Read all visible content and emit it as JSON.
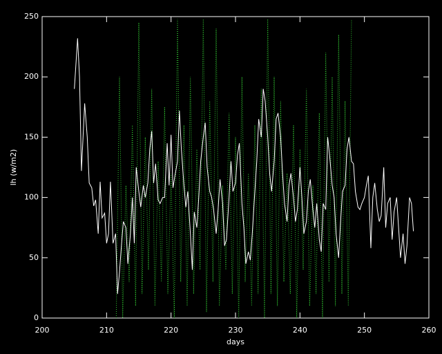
{
  "chart_data": {
    "type": "line",
    "xlabel": "days",
    "ylabel": "lh (w/m2)",
    "xlim": [
      200,
      260
    ],
    "xticks": [
      200,
      210,
      220,
      230,
      240,
      250,
      260
    ],
    "ylim": [
      0,
      250
    ],
    "yticks": [
      0,
      50,
      100,
      150,
      200,
      250
    ],
    "series": [
      {
        "color": "#ffffff",
        "dash": "solid",
        "x": [
          205.0,
          205.5,
          205.8,
          206.1,
          206.6,
          207.0,
          207.3,
          207.7,
          208.0,
          208.3,
          208.7,
          209.0,
          209.3,
          209.7,
          210.0,
          210.3,
          210.6,
          211.0,
          211.4,
          211.7,
          212.0,
          212.3,
          212.6,
          213.0,
          213.3,
          213.7,
          214.0,
          214.3,
          214.6,
          215.0,
          215.3,
          215.7,
          216.0,
          216.4,
          216.7,
          217.0,
          217.3,
          217.6,
          218.0,
          218.3,
          218.7,
          219.0,
          219.4,
          219.7,
          220.0,
          220.3,
          220.6,
          221.0,
          221.3,
          221.6,
          222.0,
          222.3,
          222.6,
          223.0,
          223.3,
          223.6,
          224.0,
          224.3,
          224.6,
          225.0,
          225.3,
          225.6,
          226.0,
          226.3,
          226.6,
          227.0,
          227.3,
          227.6,
          228.0,
          228.3,
          228.6,
          229.0,
          229.3,
          229.6,
          230.0,
          230.3,
          230.6,
          231.0,
          231.3,
          231.6,
          232.0,
          232.3,
          232.6,
          233.0,
          233.3,
          233.6,
          234.0,
          234.3,
          234.6,
          235.0,
          235.3,
          235.6,
          236.0,
          236.3,
          236.6,
          237.0,
          237.3,
          237.6,
          238.0,
          238.3,
          238.6,
          239.0,
          239.3,
          239.6,
          240.0,
          240.3,
          240.6,
          241.0,
          241.3,
          241.6,
          242.0,
          242.3,
          242.6,
          243.0,
          243.3,
          243.6,
          244.0,
          244.3,
          244.6,
          245.0,
          245.3,
          245.6,
          246.0,
          246.3,
          246.6,
          247.0,
          247.3,
          247.6,
          248.0,
          248.3,
          248.6,
          249.0,
          249.3,
          249.6,
          250.0,
          250.3,
          250.6,
          251.0,
          251.3,
          251.6,
          252.0,
          252.3,
          252.6,
          253.0,
          253.3,
          253.6,
          254.0,
          254.3,
          254.6,
          255.0,
          255.3,
          255.6,
          256.0,
          256.3,
          256.6,
          257.0,
          257.3,
          257.6
        ],
        "values": [
          190,
          232,
          200,
          122,
          178,
          150,
          112,
          108,
          93,
          98,
          70,
          113,
          83,
          87,
          62,
          70,
          113,
          62,
          70,
          20,
          38,
          60,
          80,
          75,
          45,
          70,
          100,
          62,
          125,
          105,
          92,
          110,
          100,
          112,
          140,
          155,
          112,
          128,
          98,
          95,
          100,
          100,
          145,
          110,
          152,
          108,
          118,
          130,
          172,
          140,
          110,
          92,
          105,
          70,
          40,
          88,
          75,
          100,
          130,
          150,
          162,
          125,
          105,
          100,
          90,
          70,
          90,
          115,
          95,
          60,
          65,
          100,
          130,
          105,
          112,
          135,
          145,
          95,
          75,
          45,
          55,
          48,
          70,
          105,
          130,
          165,
          150,
          190,
          180,
          150,
          120,
          105,
          130,
          165,
          170,
          150,
          120,
          95,
          80,
          110,
          120,
          100,
          80,
          90,
          125,
          100,
          70,
          80,
          105,
          115,
          90,
          75,
          95,
          65,
          55,
          95,
          90,
          150,
          135,
          110,
          100,
          70,
          50,
          80,
          105,
          110,
          140,
          150,
          130,
          128,
          105,
          92,
          90,
          95,
          100,
          110,
          118,
          58,
          100,
          112,
          90,
          80,
          85,
          125,
          75,
          95,
          100,
          65,
          88,
          100,
          75,
          50,
          70,
          45,
          60,
          100,
          95,
          72
        ]
      },
      {
        "color": "#33cc33",
        "dash": "dotted",
        "x": [
          211.5,
          212,
          212.5,
          213,
          213.5,
          214,
          214.5,
          215,
          215.5,
          216,
          216.5,
          217,
          217.5,
          218,
          218.5,
          219,
          219.5,
          220,
          220.5,
          221,
          221.5,
          222,
          222.5,
          223,
          223.5,
          224,
          224.5,
          225,
          225.5,
          226,
          226.5,
          227,
          227.5,
          228,
          228.5,
          229,
          229.5,
          230,
          230.5,
          231,
          231.5,
          232,
          232.5,
          233,
          233.5,
          234,
          234.5,
          235,
          235.5,
          236,
          236.5,
          237,
          237.5,
          238,
          238.5,
          239,
          239.5,
          240,
          240.5,
          241,
          241.5,
          242,
          242.5,
          243,
          243.5,
          244,
          244.5,
          245,
          245.5,
          246,
          246.5,
          247,
          247.5,
          248
        ],
        "values": [
          0,
          200,
          0,
          110,
          30,
          160,
          10,
          245,
          20,
          150,
          40,
          190,
          10,
          130,
          30,
          175,
          20,
          120,
          0,
          248,
          30,
          160,
          10,
          200,
          20,
          140,
          40,
          248,
          5,
          180,
          30,
          240,
          10,
          110,
          40,
          170,
          20,
          150,
          0,
          200,
          30,
          120,
          10,
          160,
          20,
          190,
          0,
          248,
          20,
          200,
          10,
          180,
          30,
          120,
          20,
          160,
          0,
          140,
          40,
          190,
          10,
          110,
          20,
          170,
          0,
          220,
          30,
          200,
          10,
          235,
          20,
          180,
          10,
          248
        ]
      }
    ]
  }
}
